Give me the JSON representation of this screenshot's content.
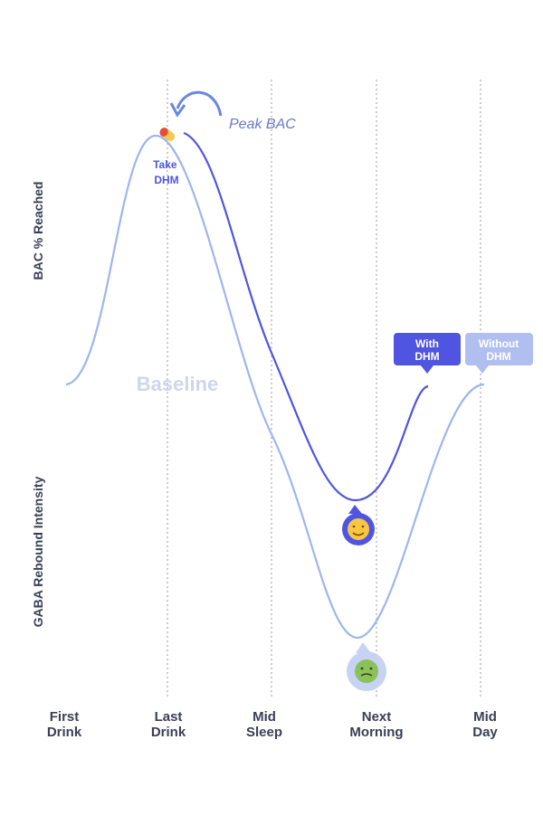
{
  "annotations": {
    "peak": "Peak BAC",
    "take_dhm": [
      "Take",
      "DHM"
    ],
    "baseline": "Baseline"
  },
  "axis_labels": {
    "top": "BAC % Reached",
    "bottom": "GABA Rebound Intensity"
  },
  "badges": [
    {
      "lines": [
        "With",
        "DHM"
      ]
    },
    {
      "lines": [
        "Without",
        "DHM"
      ]
    }
  ],
  "x_labels": [
    {
      "lines": [
        "First",
        "Drink"
      ]
    },
    {
      "lines": [
        "Last",
        "Drink"
      ]
    },
    {
      "lines": [
        "Mid",
        "Sleep"
      ]
    },
    {
      "lines": [
        "Next",
        "Morning"
      ]
    },
    {
      "lines": [
        "Mid",
        "Day"
      ]
    }
  ]
}
